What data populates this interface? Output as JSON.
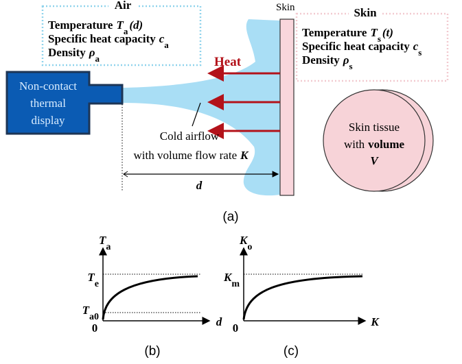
{
  "air": {
    "title": "Air",
    "properties": [
      {
        "label": "Temperature",
        "symbol": "T",
        "subscript": "a",
        "argument": "(d)"
      },
      {
        "label": "Specific heat capacity",
        "symbol": "c",
        "subscript": "a"
      },
      {
        "label": "Density",
        "symbol": "ρ",
        "subscript": "a"
      }
    ]
  },
  "skin_label": "Skin",
  "skin": {
    "title": "Skin",
    "properties": [
      {
        "label": "Temperature",
        "symbol": "T",
        "subscript": "s",
        "argument": "(t)"
      },
      {
        "label": "Specific heat capacity",
        "symbol": "c",
        "subscript": "s"
      },
      {
        "label": "Density",
        "symbol": "ρ",
        "subscript": "s"
      }
    ]
  },
  "heat": "Heat",
  "display": {
    "lines": [
      "Non-contact",
      "thermal",
      "display"
    ]
  },
  "airflow": {
    "line1": "Cold airflow",
    "line2": "with volume flow rate",
    "symbol": "K"
  },
  "distance": "d",
  "tissue": {
    "line1": "Skin tissue",
    "line2_prefix": "with",
    "line2_bold": "volume",
    "symbol": "V"
  },
  "panel_a": "(a)",
  "graph_b": {
    "y_label": {
      "symbol": "T",
      "subscript": "a"
    },
    "ticks": [
      {
        "symbol": "T",
        "subscript": "e"
      },
      {
        "symbol": "T",
        "subscript": "a0"
      }
    ],
    "origin": "0",
    "x_label": "d",
    "caption": "(b)"
  },
  "graph_c": {
    "y_label": {
      "symbol": "K",
      "subscript": "o"
    },
    "ticks": [
      {
        "symbol": "K",
        "subscript": "m"
      }
    ],
    "origin": "0",
    "x_label": "K",
    "caption": "(c)"
  }
}
